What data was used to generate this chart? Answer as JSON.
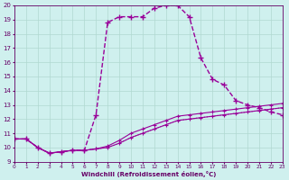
{
  "xlabel": "Windchill (Refroidissement éolien,°C)",
  "xlim": [
    0,
    23
  ],
  "ylim": [
    9,
    20
  ],
  "yticks": [
    9,
    10,
    11,
    12,
    13,
    14,
    15,
    16,
    17,
    18,
    19,
    20
  ],
  "xticks": [
    0,
    1,
    2,
    3,
    4,
    5,
    6,
    7,
    8,
    9,
    10,
    11,
    12,
    13,
    14,
    15,
    16,
    17,
    18,
    19,
    20,
    21,
    22,
    23
  ],
  "bg_color": "#cff0ee",
  "grid_color": "#b0d8d0",
  "series": [
    {
      "x": [
        0,
        1,
        2,
        3,
        4,
        5,
        6,
        7,
        8,
        9,
        10,
        11,
        12,
        13,
        14,
        15,
        16,
        17,
        18,
        19,
        20,
        21,
        22,
        23
      ],
      "y": [
        10.6,
        10.6,
        10.0,
        9.6,
        9.7,
        9.8,
        9.8,
        12.3,
        18.8,
        19.2,
        19.2,
        19.2,
        19.8,
        20.0,
        20.0,
        19.2,
        16.3,
        14.8,
        14.4,
        13.3,
        13.0,
        12.8,
        12.5,
        12.3
      ],
      "style": "--",
      "marker": "+",
      "color": "#990099",
      "lw": 1.0,
      "ms": 4,
      "mew": 1.0
    },
    {
      "x": [
        0,
        1,
        2,
        3,
        4,
        5,
        6,
        7,
        8,
        9,
        10,
        11,
        12,
        13,
        14,
        15,
        16,
        17,
        18,
        19,
        20,
        21,
        22,
        23
      ],
      "y": [
        10.6,
        10.6,
        10.0,
        9.6,
        9.7,
        9.8,
        9.8,
        9.9,
        10.0,
        10.3,
        10.7,
        11.0,
        11.3,
        11.6,
        11.9,
        12.0,
        12.1,
        12.2,
        12.3,
        12.4,
        12.5,
        12.6,
        12.7,
        12.8
      ],
      "style": ":",
      "marker": null,
      "color": "#993399",
      "lw": 0.8,
      "ms": 0,
      "mew": 0
    },
    {
      "x": [
        0,
        1,
        2,
        3,
        4,
        5,
        6,
        7,
        8,
        9,
        10,
        11,
        12,
        13,
        14,
        15,
        16,
        17,
        18,
        19,
        20,
        21,
        22,
        23
      ],
      "y": [
        10.6,
        10.6,
        10.0,
        9.6,
        9.7,
        9.8,
        9.8,
        9.9,
        10.0,
        10.3,
        10.7,
        11.0,
        11.3,
        11.6,
        11.9,
        12.0,
        12.1,
        12.2,
        12.3,
        12.4,
        12.5,
        12.6,
        12.7,
        12.8
      ],
      "style": "-",
      "marker": "+",
      "color": "#990099",
      "lw": 0.8,
      "ms": 3.5,
      "mew": 0.8
    },
    {
      "x": [
        0,
        1,
        2,
        3,
        4,
        5,
        6,
        7,
        8,
        9,
        10,
        11,
        12,
        13,
        14,
        15,
        16,
        17,
        18,
        19,
        20,
        21,
        22,
        23
      ],
      "y": [
        10.6,
        10.6,
        10.0,
        9.6,
        9.7,
        9.8,
        9.8,
        9.9,
        10.1,
        10.5,
        11.0,
        11.3,
        11.6,
        11.9,
        12.2,
        12.3,
        12.4,
        12.5,
        12.6,
        12.7,
        12.8,
        12.9,
        13.0,
        13.1
      ],
      "style": "-",
      "marker": "+",
      "color": "#990099",
      "lw": 0.8,
      "ms": 3.5,
      "mew": 0.8
    }
  ]
}
